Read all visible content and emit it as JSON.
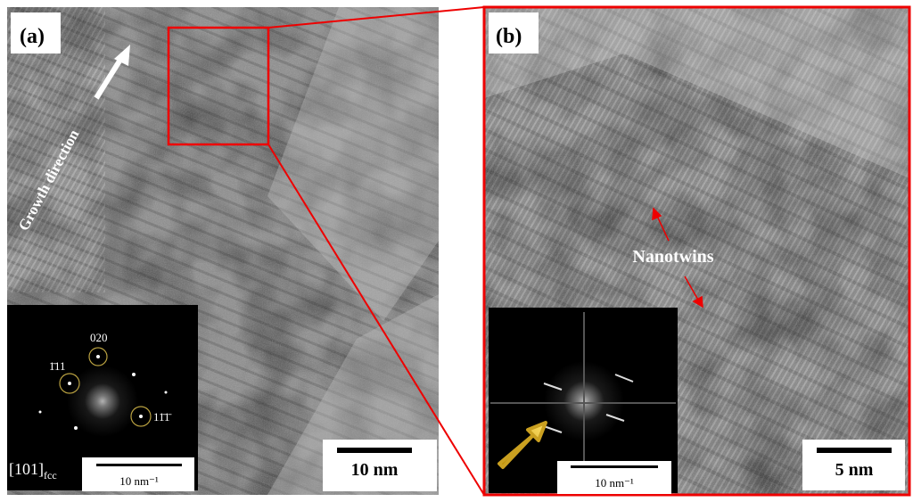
{
  "panels": [
    {
      "label": "(a)",
      "annotation": "Growth direction",
      "fft": {
        "spots": [
          "020",
          "1̄11",
          "11̄1̄"
        ],
        "zone_axis": {
          "index": "[101]",
          "subscript": "fcc"
        },
        "scale_bar": "10 nm⁻¹"
      },
      "scale_bar": "10 nm"
    },
    {
      "label": "(b)",
      "annotation": "Nanotwins",
      "fft": {
        "scale_bar": "10 nm⁻¹"
      },
      "scale_bar": "5 nm"
    }
  ]
}
